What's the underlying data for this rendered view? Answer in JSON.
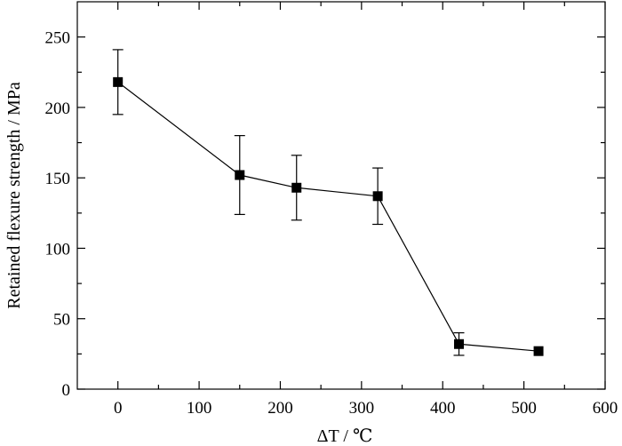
{
  "chart_data": {
    "type": "line",
    "xlabel": "ΔT / ℃",
    "ylabel": "Retained flexure strength / MPa",
    "xlim": [
      -50,
      600
    ],
    "ylim": [
      0,
      275
    ],
    "x_ticks": [
      0,
      100,
      200,
      300,
      400,
      500,
      600
    ],
    "y_ticks": [
      0,
      50,
      100,
      150,
      200,
      250
    ],
    "x_minor_ticks": [
      50,
      150,
      250,
      350,
      450,
      550
    ],
    "y_minor_ticks": [
      25,
      75,
      125,
      175,
      225
    ],
    "grid": false,
    "marker": "square",
    "color": "#000000",
    "series": [
      {
        "x": [
          0,
          150,
          220,
          320,
          420,
          518
        ],
        "y": [
          218,
          152,
          143,
          137,
          32,
          27
        ],
        "err_low": [
          195,
          124,
          120,
          117,
          24,
          null
        ],
        "err_high": [
          241,
          180,
          166,
          157,
          40,
          null
        ]
      }
    ]
  }
}
